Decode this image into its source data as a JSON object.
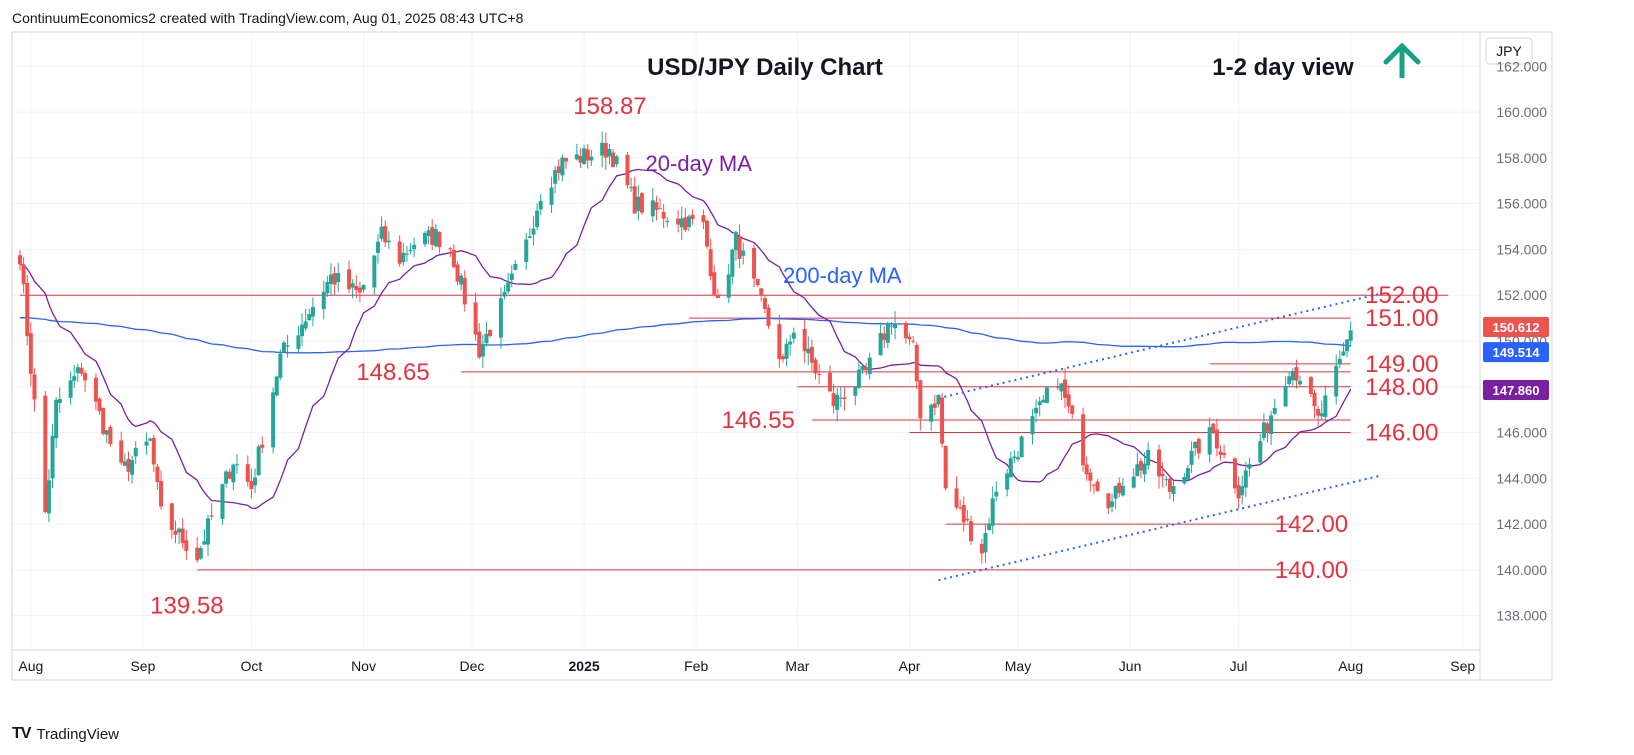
{
  "header": {
    "text": "ContinuumEconomics2 created with TradingView.com, Aug 01, 2025 08:43 UTC+8"
  },
  "footer": {
    "logo": "TV",
    "brand": "TradingView"
  },
  "currency_label": "JPY",
  "view": {
    "text": "1-2 day view",
    "direction": "up",
    "arrow_color": "#16a085"
  },
  "colors": {
    "up": "#26a69a",
    "down": "#ef5350",
    "ma20": "#7b1fa2",
    "ma200": "#2962ff",
    "levels": "#e5323f",
    "grid": "#f0f3fa"
  },
  "chart_data": {
    "type": "candlestick",
    "title": "USD/JPY Daily Chart",
    "y_ticks": [
      "162.000",
      "160.000",
      "158.000",
      "156.000",
      "154.000",
      "152.000",
      "150.000",
      "148.000",
      "146.000",
      "144.000",
      "142.000",
      "140.000",
      "138.000"
    ],
    "ylim": [
      136.5,
      163.5
    ],
    "x_ticks": [
      "Aug",
      "Sep",
      "Oct",
      "Nov",
      "Dec",
      "2025",
      "Feb",
      "Mar",
      "Apr",
      "May",
      "Jun",
      "Jul",
      "Aug",
      "Sep"
    ],
    "date_range": [
      "2024-07-29",
      "2025-09-03"
    ],
    "levels": [
      {
        "value": 152.0,
        "label": "152.00",
        "from": "2024-07-29",
        "to": "2025-08-28"
      },
      {
        "value": 151.0,
        "label": "151.00",
        "from": "2025-01-30",
        "to": "2025-08-01"
      },
      {
        "value": 149.0,
        "label": "149.00",
        "from": "2025-06-23",
        "to": "2025-08-01"
      },
      {
        "value": 148.65,
        "label": "148.65",
        "from": "2024-11-28",
        "to": "2025-08-01"
      },
      {
        "value": 148.0,
        "label": "148.00",
        "from": "2025-03-01",
        "to": "2025-08-01"
      },
      {
        "value": 146.55,
        "label": "146.55",
        "from": "2025-03-05",
        "to": "2025-08-01"
      },
      {
        "value": 146.0,
        "label": "146.00",
        "from": "2025-04-01",
        "to": "2025-08-01"
      },
      {
        "value": 142.0,
        "label": "142.00",
        "from": "2025-04-11",
        "to": "2025-07-15"
      },
      {
        "value": 140.0,
        "label": "140.00",
        "from": "2024-09-16",
        "to": "2025-07-15"
      }
    ],
    "peak_labels": [
      {
        "label": "158.87",
        "value": 158.87
      },
      {
        "label": "139.58",
        "value": 139.58
      }
    ],
    "ma_labels": [
      "20-day MA",
      "200-day MA"
    ],
    "price_badges": [
      {
        "label": "150.612",
        "value": 150.612,
        "color": "#ef5350"
      },
      {
        "label": "149.514",
        "value": 149.514,
        "color": "#2962ff"
      },
      {
        "label": "147.860",
        "value": 147.86,
        "color": "#7b1fa2"
      }
    ],
    "channel": {
      "lower": [
        {
          "date": "2025-04-09",
          "value": 139.55
        },
        {
          "date": "2025-08-01",
          "value": 144.1
        }
      ],
      "upper": [
        {
          "date": "2025-04-09",
          "value": 147.5
        },
        {
          "date": "2025-08-01",
          "value": 152.05
        }
      ]
    },
    "anchors": [
      {
        "date": "2024-07-29",
        "value": 153.8
      },
      {
        "date": "2024-07-31",
        "value": 150.4
      },
      {
        "date": "2024-08-05",
        "value": 142.5
      },
      {
        "date": "2024-08-08",
        "value": 147.2
      },
      {
        "date": "2024-08-15",
        "value": 148.8
      },
      {
        "date": "2024-08-26",
        "value": 144.3
      },
      {
        "date": "2024-09-03",
        "value": 145.6
      },
      {
        "date": "2024-09-06",
        "value": 142.4
      },
      {
        "date": "2024-09-16",
        "value": 140.6
      },
      {
        "date": "2024-09-26",
        "value": 144.8
      },
      {
        "date": "2024-10-01",
        "value": 143.6
      },
      {
        "date": "2024-10-09",
        "value": 149.3
      },
      {
        "date": "2024-10-23",
        "value": 152.8
      },
      {
        "date": "2024-10-31",
        "value": 152.0
      },
      {
        "date": "2024-11-06",
        "value": 154.6
      },
      {
        "date": "2024-11-11",
        "value": 153.6
      },
      {
        "date": "2024-11-15",
        "value": 154.3
      },
      {
        "date": "2024-11-21",
        "value": 154.6
      },
      {
        "date": "2024-11-25",
        "value": 154.1
      },
      {
        "date": "2024-12-03",
        "value": 149.6
      },
      {
        "date": "2024-12-10",
        "value": 151.8
      },
      {
        "date": "2024-12-16",
        "value": 154.2
      },
      {
        "date": "2024-12-20",
        "value": 156.5
      },
      {
        "date": "2024-12-26",
        "value": 157.8
      },
      {
        "date": "2025-01-08",
        "value": 158.4
      },
      {
        "date": "2025-01-10",
        "value": 157.7
      },
      {
        "date": "2025-01-15",
        "value": 156.0
      },
      {
        "date": "2025-01-24",
        "value": 155.5
      },
      {
        "date": "2025-02-03",
        "value": 155.0
      },
      {
        "date": "2025-02-07",
        "value": 151.5
      },
      {
        "date": "2025-02-12",
        "value": 154.4
      },
      {
        "date": "2025-02-19",
        "value": 151.6
      },
      {
        "date": "2025-02-25",
        "value": 149.0
      },
      {
        "date": "2025-02-28",
        "value": 150.6
      },
      {
        "date": "2025-03-05",
        "value": 149.0
      },
      {
        "date": "2025-03-11",
        "value": 147.3
      },
      {
        "date": "2025-03-20",
        "value": 148.6
      },
      {
        "date": "2025-03-27",
        "value": 151.0
      },
      {
        "date": "2025-04-02",
        "value": 149.6
      },
      {
        "date": "2025-04-04",
        "value": 146.9
      },
      {
        "date": "2025-04-09",
        "value": 147.5
      },
      {
        "date": "2025-04-11",
        "value": 143.5
      },
      {
        "date": "2025-04-21",
        "value": 140.9
      },
      {
        "date": "2025-04-25",
        "value": 143.6
      },
      {
        "date": "2025-05-01",
        "value": 145.3
      },
      {
        "date": "2025-05-12",
        "value": 148.4
      },
      {
        "date": "2025-05-20",
        "value": 144.5
      },
      {
        "date": "2025-05-27",
        "value": 142.9
      },
      {
        "date": "2025-05-30",
        "value": 144.0
      },
      {
        "date": "2025-06-06",
        "value": 144.8
      },
      {
        "date": "2025-06-12",
        "value": 143.5
      },
      {
        "date": "2025-06-20",
        "value": 145.4
      },
      {
        "date": "2025-06-24",
        "value": 146.0
      },
      {
        "date": "2025-07-01",
        "value": 143.5
      },
      {
        "date": "2025-07-08",
        "value": 146.0
      },
      {
        "date": "2025-07-15",
        "value": 148.9
      },
      {
        "date": "2025-07-18",
        "value": 148.5
      },
      {
        "date": "2025-07-23",
        "value": 146.5
      },
      {
        "date": "2025-07-28",
        "value": 148.5
      },
      {
        "date": "2025-07-30",
        "value": 149.4
      },
      {
        "date": "2025-08-01",
        "value": 150.6
      }
    ]
  }
}
